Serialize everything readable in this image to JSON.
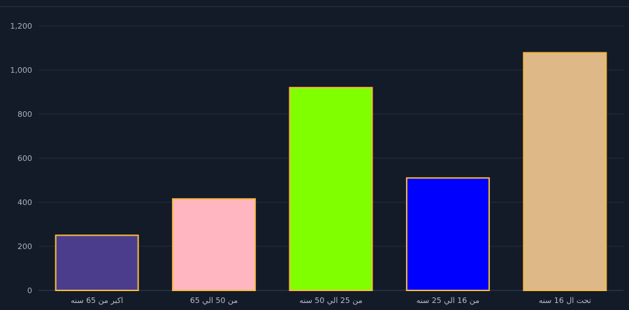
{
  "chart_data": {
    "type": "bar",
    "categories": [
      "اكبر من 65 سنه",
      "من 50 الي 65",
      "من 25 الي 50 سنه",
      "من 16 الي  25 سنه",
      "تحت ال 16 سنه"
    ],
    "values": [
      250,
      415,
      920,
      510,
      1078
    ],
    "colors": [
      "#4b3d8c",
      "#ffb6c1",
      "#80ff00",
      "#0000ff",
      "#deb887"
    ],
    "bar_border_color": "#f5b942",
    "yticks": [
      0,
      200,
      400,
      600,
      800,
      1000,
      1200
    ],
    "ytick_labels": [
      "0",
      "200",
      "400",
      "600",
      "800",
      "1,000",
      "1,200"
    ],
    "ylim": [
      0,
      1200
    ],
    "grid": true,
    "title": "",
    "xlabel": "",
    "ylabel": ""
  }
}
